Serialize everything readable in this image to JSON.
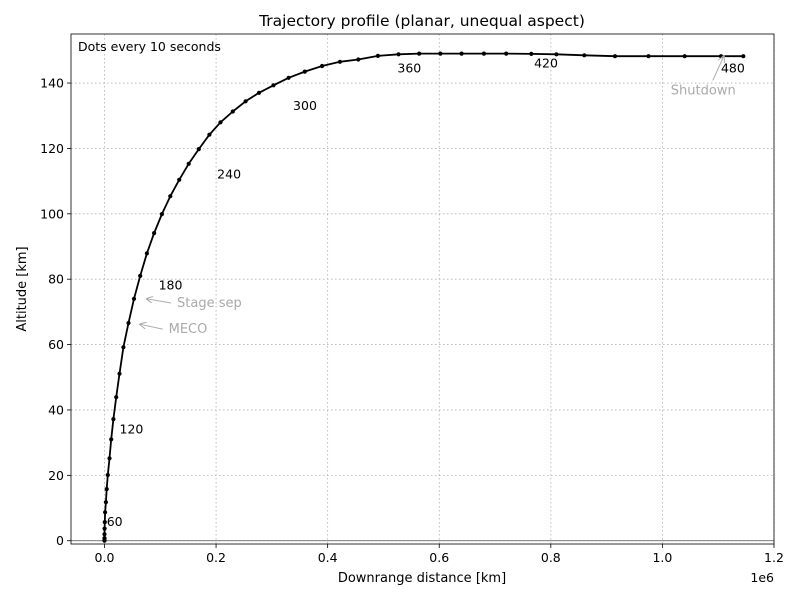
{
  "chart_data": {
    "type": "line",
    "title": "Trajectory profile (planar, unequal aspect)",
    "xlabel": "Downrange distance [km]",
    "ylabel": "Altitude [km]",
    "x_offset_label": "1e6",
    "note": "Dots every 10 seconds",
    "xlim": [
      -60000,
      1200000
    ],
    "ylim": [
      -1,
      155
    ],
    "x_ticks": [
      0,
      200000,
      400000,
      600000,
      800000,
      1000000,
      1200000
    ],
    "x_tick_labels": [
      "0.0",
      "0.2",
      "0.4",
      "0.6",
      "0.8",
      "1.0",
      "1.2"
    ],
    "y_ticks": [
      0,
      20,
      40,
      60,
      80,
      100,
      120,
      140
    ],
    "y_tick_labels": [
      "0",
      "20",
      "40",
      "60",
      "80",
      "100",
      "120",
      "140"
    ],
    "grid": true,
    "series": [
      {
        "color": "#000000",
        "x": [
          0,
          0,
          0,
          0,
          200,
          600,
          1200,
          2500,
          4000,
          6000,
          9000,
          12000,
          16000,
          21000,
          27000,
          34000,
          43000,
          53000,
          64000,
          76000,
          89000,
          103000,
          118000,
          134000,
          151000,
          169000,
          188000,
          208000,
          230000,
          253000,
          277000,
          303000,
          330000,
          359000,
          390000,
          422000,
          455000,
          490000,
          527000,
          564000,
          602000,
          640000,
          680000,
          720000,
          765000,
          810000,
          860000,
          915000,
          975000,
          1040000,
          1105000,
          1145000
        ],
        "y": [
          0,
          0.2,
          0.8,
          2,
          3.7,
          5.7,
          8.7,
          11.8,
          15.8,
          20.1,
          25.2,
          31,
          37.2,
          43.9,
          51.1,
          59.2,
          66.6,
          74,
          81,
          87.9,
          94.1,
          99.9,
          105.4,
          110.4,
          115.3,
          119.8,
          124.2,
          128,
          131.3,
          134.4,
          137,
          139.3,
          141.6,
          143.5,
          145.2,
          146.5,
          147.2,
          148.3,
          148.8,
          149,
          149,
          149,
          149,
          149,
          148.9,
          148.8,
          148.5,
          148.2,
          148.2,
          148.2,
          148.2,
          148.2
        ]
      }
    ],
    "time_labels": [
      {
        "text": "60",
        "x": 4000,
        "y": 5.7
      },
      {
        "text": "120",
        "x": 27000,
        "y": 34
      },
      {
        "text": "180",
        "x": 97000,
        "y": 78
      },
      {
        "text": "240",
        "x": 202000,
        "y": 112
      },
      {
        "text": "300",
        "x": 338000,
        "y": 133
      },
      {
        "text": "360",
        "x": 525000,
        "y": 144.5
      },
      {
        "text": "420",
        "x": 770000,
        "y": 146
      },
      {
        "text": "480",
        "x": 1105000,
        "y": 144.5
      }
    ],
    "annotations": [
      {
        "text": "Stage sep",
        "text_x": 130000,
        "text_y": 71.5,
        "arrow_x": 76000,
        "arrow_y": 74
      },
      {
        "text": "MECO",
        "text_x": 115000,
        "text_y": 63.5,
        "arrow_x": 64000,
        "arrow_y": 66.2
      },
      {
        "text": "Shutdown",
        "text_x": 1015000,
        "text_y": 136.5,
        "arrow_x": 1110000,
        "arrow_y": 148.2
      }
    ]
  }
}
